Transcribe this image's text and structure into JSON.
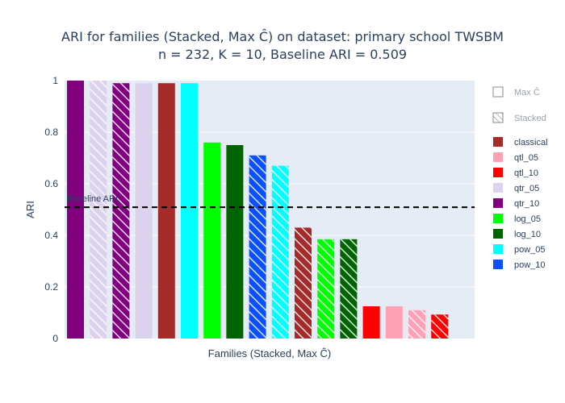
{
  "chart_data": {
    "type": "bar",
    "title_line1": "ARI for families (Stacked, Max Ĉ) on dataset: primary school TWSBM",
    "title_line2": "n = 232, K = 10, Baseline ARI = 0.509",
    "xlabel": "Families (Stacked, Max Ĉ)",
    "ylabel": "ARI",
    "ylim": [
      0,
      1
    ],
    "yticks": [
      "0",
      "0.2",
      "0.4",
      "0.6",
      "0.8",
      "1"
    ],
    "baseline": {
      "value": 0.509,
      "label": "Baseline ARI"
    },
    "bars": [
      {
        "family": "qtr_10",
        "method": "Max Ĉ",
        "value": 1.0
      },
      {
        "family": "qtr_05",
        "method": "Stacked",
        "value": 1.0
      },
      {
        "family": "qtr_10",
        "method": "Stacked",
        "value": 0.99
      },
      {
        "family": "qtr_05",
        "method": "Max Ĉ",
        "value": 0.99
      },
      {
        "family": "classical",
        "method": "Max Ĉ",
        "value": 0.99
      },
      {
        "family": "pow_05",
        "method": "Max Ĉ",
        "value": 0.99
      },
      {
        "family": "log_05",
        "method": "Max Ĉ",
        "value": 0.76
      },
      {
        "family": "log_10",
        "method": "Max Ĉ",
        "value": 0.75
      },
      {
        "family": "pow_10",
        "method": "Stacked",
        "value": 0.71
      },
      {
        "family": "pow_05",
        "method": "Stacked",
        "value": 0.67
      },
      {
        "family": "classical",
        "method": "Stacked",
        "value": 0.43
      },
      {
        "family": "log_05",
        "method": "Stacked",
        "value": 0.385
      },
      {
        "family": "log_10",
        "method": "Stacked",
        "value": 0.385
      },
      {
        "family": "qtl_10",
        "method": "Max Ĉ",
        "value": 0.125
      },
      {
        "family": "qtl_05",
        "method": "Max Ĉ",
        "value": 0.125
      },
      {
        "family": "qtl_05",
        "method": "Stacked",
        "value": 0.11
      },
      {
        "family": "qtl_10",
        "method": "Stacked",
        "value": 0.093
      }
    ],
    "legend_placement": "right",
    "legend_patterns": [
      {
        "name": "Max Ĉ",
        "pattern": "solid"
      },
      {
        "name": "Stacked",
        "pattern": "hatched"
      }
    ],
    "legend_families": [
      {
        "name": "classical",
        "color": "#a52a2a"
      },
      {
        "name": "qtl_05",
        "color": "#ffa0b4"
      },
      {
        "name": "qtl_10",
        "color": "#ff0000"
      },
      {
        "name": "qtr_05",
        "color": "#ddd2ee"
      },
      {
        "name": "qtr_10",
        "color": "#800080"
      },
      {
        "name": "log_05",
        "color": "#00ff00"
      },
      {
        "name": "log_10",
        "color": "#006400"
      },
      {
        "name": "pow_05",
        "color": "#00ffff"
      },
      {
        "name": "pow_10",
        "color": "#0a50ff"
      }
    ],
    "colors": {
      "plot_bg": "#e5ecf6",
      "grid": "#ffffff",
      "text": "#2a3f5f",
      "baseline": "#000000"
    }
  }
}
